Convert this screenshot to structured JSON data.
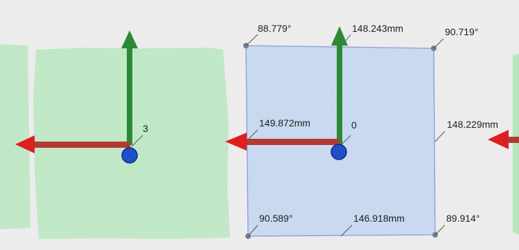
{
  "colors": {
    "background": "#ececec",
    "sheet_green": "#b6e4bd",
    "sheet_blue": "#bfd3ee",
    "selection_outline": "#6c86d8",
    "y_axis": "#2c8a35",
    "x_axis": "#c0392b",
    "origin": "#1f4fc8"
  },
  "left_sheet": {
    "id_label": "3"
  },
  "selected_sheet": {
    "id_label": "0",
    "angles": {
      "top_left": "88.779°",
      "top_right": "90.719°",
      "bottom_left": "90.589°",
      "bottom_right": "89.914°"
    },
    "edges": {
      "top": "148.243mm",
      "left": "149.872mm",
      "right": "148.229mm",
      "bottom": "146.918mm"
    }
  },
  "icons": {
    "y_axis_arrow": "green-up-arrow",
    "x_axis_arrow": "red-left-arrow",
    "origin_marker": "blue-circle",
    "corner_handle": "grey-dot"
  }
}
